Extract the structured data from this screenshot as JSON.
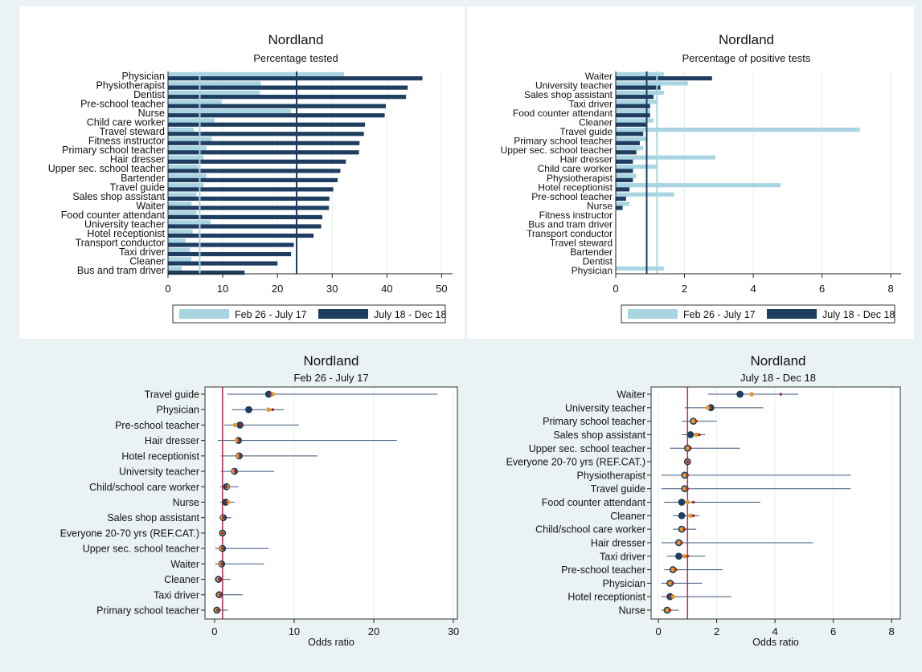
{
  "colors": {
    "light": "#a9d5e3",
    "dark": "#1e3d61",
    "ref": "#c8264e",
    "marker_mid": "#e29a2d",
    "marker_red": "#9e2a34",
    "ci": "#3a5478"
  },
  "chart_data": [
    {
      "type": "bar",
      "orientation": "horizontal",
      "title": "Nordland",
      "subtitle": "Percentage tested",
      "categories": [
        "Physician",
        "Physiotherapist",
        "Dentist",
        "Pre-school teacher",
        "Nurse",
        "Child care worker",
        "Travel steward",
        "Fitness instructor",
        "Primary school teacher",
        "Hair dresser",
        "Upper sec. school teacher",
        "Bartender",
        "Travel guide",
        "Sales shop assistant",
        "Waiter",
        "Food counter attendant",
        "University teacher",
        "Hotel receptionist",
        "Transport conductor",
        "Taxi driver",
        "Cleaner",
        "Bus and tram driver"
      ],
      "series": [
        {
          "name": "Feb 26 - July 17",
          "values": [
            32.2,
            17.0,
            16.8,
            9.8,
            22.5,
            8.5,
            4.7,
            8.0,
            7.0,
            6.5,
            5.5,
            7.0,
            6.5,
            5.2,
            4.3,
            5.2,
            7.8,
            4.5,
            3.2,
            4.0,
            4.3,
            2.5
          ],
          "reference_line": 5.8
        },
        {
          "name": "July 18 - Dec 18",
          "values": [
            46.5,
            43.8,
            43.5,
            39.8,
            39.6,
            36.0,
            35.8,
            35.0,
            34.9,
            32.5,
            31.5,
            31.0,
            30.2,
            29.5,
            29.4,
            28.2,
            28.0,
            26.6,
            23.0,
            22.5,
            20.0,
            14.0
          ],
          "reference_line": 23.5
        }
      ],
      "xlim": [
        0,
        52
      ],
      "xticks": [
        0,
        10,
        20,
        30,
        40,
        50
      ]
    },
    {
      "type": "bar",
      "orientation": "horizontal",
      "title": "Nordland",
      "subtitle": "Percentage of positive tests",
      "categories": [
        "Waiter",
        "University teacher",
        "Sales shop assistant",
        "Taxi driver",
        "Food counter attendant",
        "Cleaner",
        "Travel guide",
        "Primary school teacher",
        "Upper sec. school teacher",
        "Hair dresser",
        "Child care worker",
        "Physiotherapist",
        "Hotel receptionist",
        "Pre-school teacher",
        "Nurse",
        "Fitness instructor",
        "Bus and tram driver",
        "Transport conductor",
        "Travel steward",
        "Bartender",
        "Dentist",
        "Physician"
      ],
      "series": [
        {
          "name": "Feb 26 - July 17",
          "values": [
            1.4,
            2.1,
            1.4,
            1.2,
            1.0,
            1.1,
            7.1,
            0.9,
            0.8,
            2.9,
            1.2,
            0.6,
            4.8,
            1.7,
            0.4,
            0,
            0,
            0,
            0,
            0,
            0,
            1.4
          ],
          "reference_line": 1.2
        },
        {
          "name": "July 18 - Dec 18",
          "values": [
            2.8,
            1.3,
            1.1,
            1.0,
            1.0,
            0.9,
            0.8,
            0.7,
            0.6,
            0.5,
            0.5,
            0.5,
            0.4,
            0.3,
            0.2,
            0,
            0,
            0,
            0,
            0,
            0,
            0
          ],
          "reference_line": 0.9
        }
      ],
      "xlim": [
        0,
        8.3
      ],
      "xticks": [
        0,
        2,
        4,
        6,
        8
      ]
    },
    {
      "type": "scatter",
      "subtype": "forest",
      "title": "Nordland",
      "subtitle": "Feb 26 - July 17",
      "xlabel": "Odds ratio",
      "reference_line": 1,
      "xlim": [
        -1.2,
        30.5
      ],
      "xticks": [
        0,
        10,
        20,
        30
      ],
      "categories": [
        "Travel guide",
        "Physician",
        "Pre-school teacher",
        "Hair dresser",
        "Hotel receptionist",
        "University teacher",
        "Child/school care worker",
        "Nurse",
        "Sales shop assistant",
        "Everyone 20-70 yrs (REF.CAT.)",
        "Upper sec. school teacher",
        "Waiter",
        "Cleaner",
        "Taxi driver",
        "Primary school teacher"
      ],
      "estimate": [
        6.8,
        4.3,
        3.2,
        3.0,
        3.1,
        2.5,
        1.5,
        1.4,
        1.1,
        1.0,
        1.0,
        0.9,
        0.5,
        0.6,
        0.3
      ],
      "ci_low": [
        1.6,
        2.2,
        1.2,
        0.4,
        0.8,
        0.8,
        0.7,
        0.7,
        0.6,
        1.0,
        0.1,
        0.1,
        0.1,
        0.1,
        0.1
      ],
      "ci_high": [
        28.0,
        8.7,
        10.6,
        22.9,
        12.9,
        7.5,
        3.0,
        2.5,
        2.1,
        1.0,
        6.8,
        6.2,
        2.0,
        3.5,
        1.7
      ],
      "alt_markers": [
        [
          7.3,
          7.0
        ],
        [
          6.8,
          7.3
        ],
        [
          2.6,
          3.3
        ],
        [
          2.8,
          3.1
        ],
        [
          3.0,
          3.2
        ],
        [
          2.4,
          2.6
        ],
        [
          1.6,
          1.5
        ],
        [
          1.7,
          1.5
        ],
        [
          1.0,
          1.1
        ],
        [
          1.0,
          1.0
        ],
        [
          0.9,
          1.0
        ],
        [
          0.8,
          0.9
        ],
        [
          0.5,
          0.6
        ],
        [
          0.6,
          0.7
        ],
        [
          0.3,
          0.4
        ]
      ]
    },
    {
      "type": "scatter",
      "subtype": "forest",
      "title": "Nordland",
      "subtitle": "July 18 - Dec 18",
      "xlabel": "Odds ratio",
      "reference_line": 1,
      "xlim": [
        -0.25,
        8.3
      ],
      "xticks": [
        0,
        2,
        4,
        6,
        8
      ],
      "categories": [
        "Waiter",
        "University teacher",
        "Primary school teacher",
        "Sales shop assistant",
        "Upper sec. school teacher",
        "Everyone 20-70 yrs (REF.CAT.)",
        "Physiotherapist",
        "Travel guide",
        "Food counter attendant",
        "Cleaner",
        "Child/school care worker",
        "Hair dresser",
        "Taxi driver",
        "Pre-school teacher",
        "Physician",
        "Hotel receptionist",
        "Nurse"
      ],
      "estimate": [
        2.8,
        1.8,
        1.2,
        1.1,
        1.0,
        1.0,
        0.9,
        0.9,
        0.8,
        0.8,
        0.8,
        0.7,
        0.7,
        0.5,
        0.4,
        0.4,
        0.3
      ],
      "ci_low": [
        1.7,
        0.9,
        0.8,
        0.8,
        0.4,
        1.0,
        0.1,
        0.1,
        0.2,
        0.5,
        0.5,
        0.1,
        0.3,
        0.2,
        0.1,
        0.1,
        0.1
      ],
      "ci_high": [
        4.8,
        3.6,
        2.0,
        1.6,
        2.8,
        1.0,
        6.6,
        6.6,
        3.5,
        1.4,
        1.3,
        5.3,
        1.6,
        2.2,
        1.5,
        2.5,
        0.7
      ],
      "alt_markers": [
        [
          3.2,
          4.2
        ],
        [
          1.7,
          1.8
        ],
        [
          1.2,
          1.3
        ],
        [
          1.3,
          1.4
        ],
        [
          1.0,
          1.1
        ],
        [
          1.0,
          1.0
        ],
        [
          0.9,
          1.0
        ],
        [
          0.9,
          1.0
        ],
        [
          1.0,
          1.2
        ],
        [
          1.1,
          1.2
        ],
        [
          0.8,
          0.9
        ],
        [
          0.7,
          0.8
        ],
        [
          0.9,
          1.0
        ],
        [
          0.5,
          0.6
        ],
        [
          0.4,
          0.5
        ],
        [
          0.5,
          0.4
        ],
        [
          0.3,
          0.4
        ]
      ]
    }
  ]
}
